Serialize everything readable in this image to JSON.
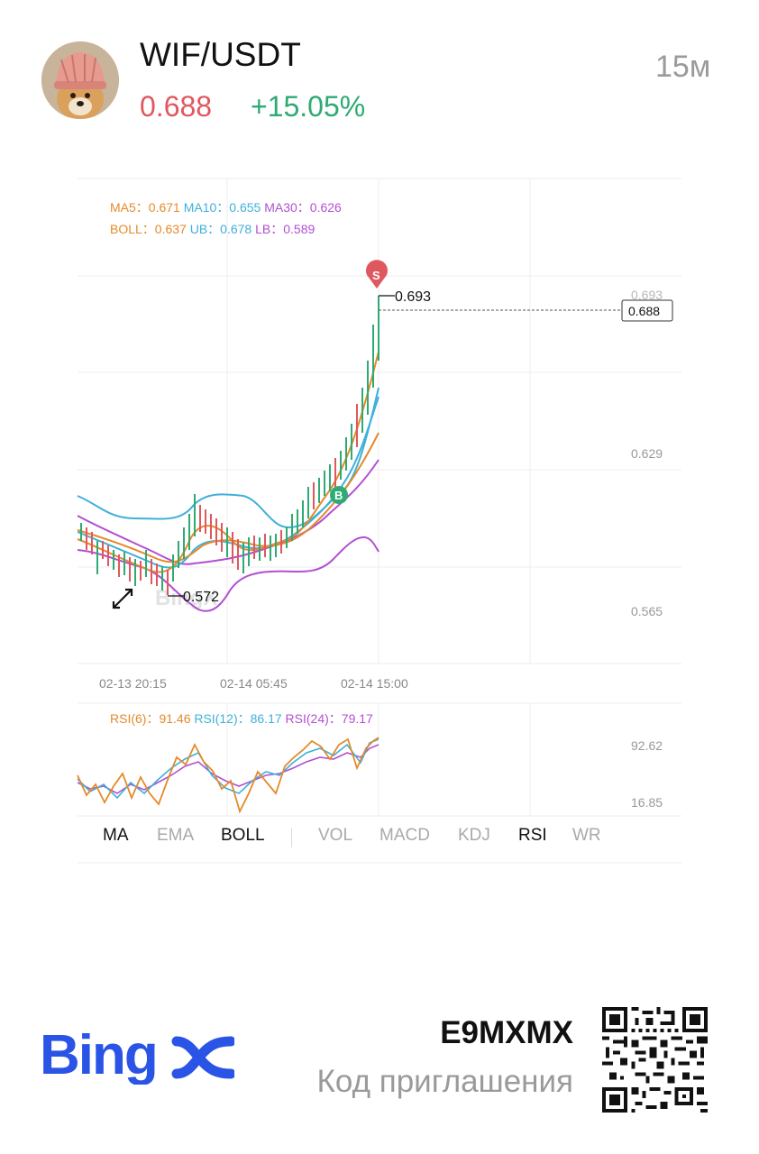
{
  "header": {
    "pair": "WIF/USDT",
    "price": "0.688",
    "change": "+15.05%",
    "timeframe": "15м",
    "price_color": "#e0585f",
    "change_color": "#2eaa73"
  },
  "chart": {
    "ma_legend": {
      "ma5": "MA5：0.671",
      "ma10": "MA10：0.655",
      "ma30": "MA30：0.626"
    },
    "boll_legend": {
      "boll": "BOLL：0.637",
      "ub": "UB：0.678",
      "lb": "LB：0.589"
    },
    "y_ticks": [
      "0.693",
      "0.629",
      "0.565"
    ],
    "x_ticks": [
      "02-13 20:15",
      "02-14 05:45",
      "02-14 15:00"
    ],
    "high_label": "0.693",
    "low_label": "0.572",
    "current_price_tag": "0.688",
    "sell_marker": "S",
    "buy_marker": "B",
    "watermark": "BingX"
  },
  "rsi": {
    "legend": {
      "rsi6": "RSI(6)：91.46",
      "rsi12": "RSI(12)：86.17",
      "rsi24": "RSI(24)：79.17"
    },
    "y_ticks": [
      "92.62",
      "16.85"
    ]
  },
  "indicator_tabs": {
    "ma": "MA",
    "ema": "EMA",
    "boll": "BOLL",
    "vol": "VOL",
    "macd": "MACD",
    "kdj": "KDJ",
    "rsi": "RSI",
    "wr": "WR"
  },
  "footer": {
    "brand": "BingX",
    "invite_code": "E9MXMX",
    "invite_label": "Код приглашения"
  },
  "colors": {
    "ma5": "#e58a2a",
    "ma10": "#3fb0d9",
    "ma30": "#b34fd1",
    "up": "#2eaa73",
    "down": "#e0585f",
    "brand": "#2a54e6"
  },
  "icons": [
    "avatar-dog-image",
    "expand-arrows-icon",
    "qr-code"
  ]
}
